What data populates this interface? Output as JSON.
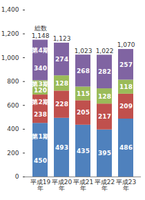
{
  "chart_data": {
    "type": "bar",
    "stacked": true,
    "data_labels": true,
    "grid": false,
    "categories": [
      "平成19年",
      "平成20年",
      "平成21年",
      "平成22年",
      "平成23年"
    ],
    "series": [
      {
        "name": "第1期",
        "color": "#4f81bd",
        "values": [
          450,
          493,
          435,
          395,
          486
        ]
      },
      {
        "name": "第2期",
        "color": "#c0504d",
        "values": [
          238,
          228,
          205,
          217,
          209
        ]
      },
      {
        "name": "第3期",
        "color": "#9bbb59",
        "values": [
          120,
          128,
          115,
          128,
          118
        ]
      },
      {
        "name": "第4期",
        "color": "#8064a2",
        "values": [
          340,
          274,
          268,
          282,
          257
        ]
      }
    ],
    "totals": {
      "name": "総数",
      "values": [
        1148,
        1123,
        1023,
        1022,
        1070
      ],
      "value_labels": [
        "1,148",
        "1,123",
        "1,023",
        "1,022",
        "1,070"
      ]
    },
    "ylim": [
      0,
      1400
    ],
    "yticks": [
      0,
      200,
      400,
      600,
      800,
      {
        "value": 1000,
        "label": "1,000"
      },
      {
        "value": 1200,
        "label": "1,200"
      },
      {
        "value": 1400,
        "label": "1,400"
      }
    ]
  }
}
